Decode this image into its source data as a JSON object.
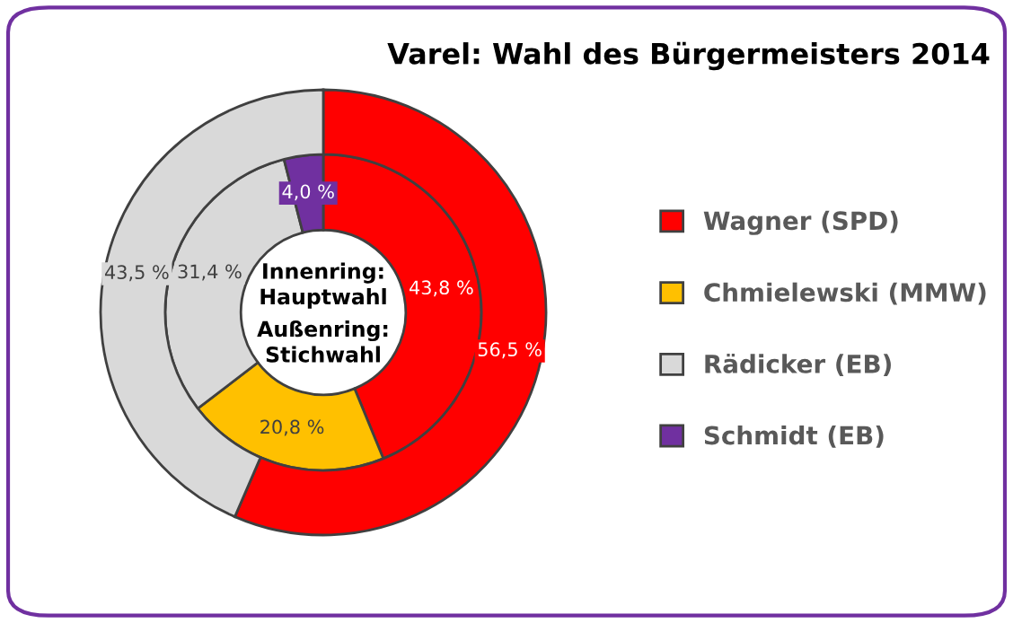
{
  "chart_data": {
    "type": "donut",
    "title": "Varel: Wahl des Bürgermeisters 2014",
    "categories": [
      "Wagner (SPD)",
      "Chmielewski (MMW)",
      "Rädicker (EB)",
      "Schmidt (EB)"
    ],
    "colors": [
      "#ff0000",
      "#ffc000",
      "#d9d9d9",
      "#7030a0"
    ],
    "series": [
      {
        "values": [
          43.8,
          20.8,
          31.4,
          4.0
        ],
        "value_labels": [
          "43,8 %",
          "20,8 %",
          "31,4 %",
          "4,0 %"
        ]
      },
      {
        "values": [
          56.5,
          null,
          43.5,
          null
        ],
        "value_labels": [
          "56,5 %",
          null,
          "43,5 %",
          null
        ]
      }
    ],
    "annotations": [
      "Innenring:\nHauptwahl",
      "Außenring:\nStichwahl"
    ],
    "legend": "right"
  }
}
